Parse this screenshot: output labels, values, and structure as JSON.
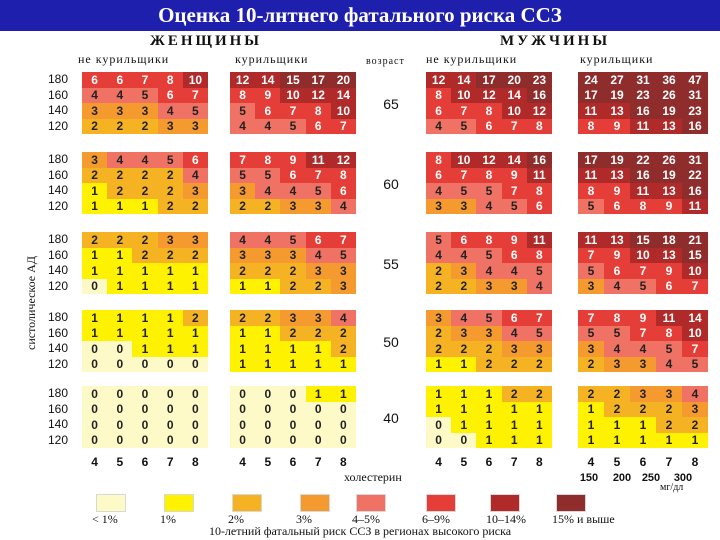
{
  "title": "Оценка 10-лнтнего фатального риска ССЗ",
  "headers": {
    "women": "ЖЕНЩИНЫ",
    "men": "МУЖЧИНЫ",
    "non_smokers": "не курильщики",
    "smokers": "курильщики",
    "age": "возраст"
  },
  "sbp_label": "систолическое АД",
  "sbp_rows": [
    "180",
    "160",
    "140",
    "120"
  ],
  "ages": [
    "65",
    "60",
    "55",
    "50",
    "40"
  ],
  "chol_ticks": [
    "4",
    "5",
    "6",
    "7",
    "8"
  ],
  "chol_label": "холестерин",
  "mmol_ticks": [
    "150",
    "200",
    "250",
    "300"
  ],
  "mmol_unit": "мг/дл",
  "legend": {
    "items": [
      {
        "label": "< 1%",
        "color": "#fefac8"
      },
      {
        "label": "1%",
        "color": "#fef200"
      },
      {
        "label": "2%",
        "color": "#f5b324"
      },
      {
        "label": "3%",
        "color": "#f49a2e"
      },
      {
        "label": "4–5%",
        "color": "#ef7265"
      },
      {
        "label": "6–9%",
        "color": "#e53d37"
      },
      {
        "label": "10–14%",
        "color": "#b02a2a"
      },
      {
        "label": "15% и выше",
        "color": "#8f2d2d"
      }
    ]
  },
  "footer": "10-летний фатальный риск ССЗ в регионах высокого риска",
  "palette": {
    "lt1": "#fefac8",
    "p1": "#fef200",
    "p2": "#f5b324",
    "p3": "#f49a2e",
    "p45": "#ef7265",
    "p69": "#e53d37",
    "p1014": "#b02a2a",
    "p15": "#8f2d2d",
    "title_bg": "#1f1fae"
  },
  "tables": [
    {
      "age": "65",
      "panels": [
        {
          "sex": "women",
          "smoking": "non-smoker",
          "rows": [
            [
              6,
              6,
              7,
              8,
              10
            ],
            [
              4,
              4,
              5,
              6,
              7
            ],
            [
              3,
              3,
              3,
              4,
              5
            ],
            [
              2,
              2,
              2,
              3,
              3
            ]
          ]
        },
        {
          "sex": "women",
          "smoking": "smoker",
          "rows": [
            [
              12,
              14,
              15,
              17,
              20
            ],
            [
              8,
              9,
              10,
              12,
              14
            ],
            [
              5,
              6,
              7,
              8,
              10
            ],
            [
              4,
              4,
              5,
              6,
              7
            ]
          ]
        },
        {
          "sex": "men",
          "smoking": "non-smoker",
          "rows": [
            [
              12,
              14,
              17,
              20,
              23
            ],
            [
              8,
              10,
              12,
              14,
              16
            ],
            [
              6,
              7,
              8,
              10,
              12
            ],
            [
              4,
              5,
              6,
              7,
              8
            ]
          ]
        },
        {
          "sex": "men",
          "smoking": "smoker",
          "rows": [
            [
              24,
              27,
              31,
              36,
              47
            ],
            [
              17,
              19,
              23,
              26,
              31
            ],
            [
              11,
              13,
              16,
              19,
              23
            ],
            [
              8,
              9,
              11,
              13,
              16
            ]
          ]
        }
      ]
    },
    {
      "age": "60",
      "panels": [
        {
          "sex": "women",
          "smoking": "non-smoker",
          "rows": [
            [
              3,
              4,
              4,
              5,
              6
            ],
            [
              2,
              2,
              2,
              2,
              4
            ],
            [
              1,
              2,
              2,
              2,
              3
            ],
            [
              1,
              1,
              1,
              2,
              2
            ]
          ]
        },
        {
          "sex": "women",
          "smoking": "smoker",
          "rows": [
            [
              7,
              8,
              9,
              11,
              12
            ],
            [
              5,
              5,
              6,
              7,
              8
            ],
            [
              3,
              4,
              4,
              5,
              6
            ],
            [
              2,
              2,
              3,
              3,
              4
            ]
          ]
        },
        {
          "sex": "men",
          "smoking": "non-smoker",
          "rows": [
            [
              8,
              10,
              12,
              14,
              16
            ],
            [
              6,
              7,
              8,
              9,
              11
            ],
            [
              4,
              5,
              5,
              7,
              8
            ],
            [
              3,
              3,
              4,
              5,
              6
            ]
          ]
        },
        {
          "sex": "men",
          "smoking": "smoker",
          "rows": [
            [
              17,
              19,
              22,
              26,
              31
            ],
            [
              11,
              13,
              16,
              19,
              22
            ],
            [
              8,
              9,
              11,
              13,
              16
            ],
            [
              5,
              6,
              8,
              9,
              11
            ]
          ]
        }
      ]
    },
    {
      "age": "55",
      "panels": [
        {
          "sex": "women",
          "smoking": "non-smoker",
          "rows": [
            [
              2,
              2,
              2,
              3,
              3
            ],
            [
              1,
              1,
              2,
              2,
              2
            ],
            [
              1,
              1,
              1,
              1,
              1
            ],
            [
              0,
              1,
              1,
              1,
              1
            ]
          ]
        },
        {
          "sex": "women",
          "smoking": "smoker",
          "rows": [
            [
              4,
              4,
              5,
              6,
              7
            ],
            [
              3,
              3,
              3,
              4,
              5
            ],
            [
              2,
              2,
              2,
              3,
              3
            ],
            [
              1,
              1,
              2,
              2,
              3
            ]
          ]
        },
        {
          "sex": "men",
          "smoking": "non-smoker",
          "rows": [
            [
              5,
              6,
              8,
              9,
              11
            ],
            [
              4,
              4,
              5,
              6,
              8
            ],
            [
              2,
              3,
              4,
              4,
              5
            ],
            [
              2,
              2,
              3,
              3,
              4
            ]
          ]
        },
        {
          "sex": "men",
          "smoking": "smoker",
          "rows": [
            [
              11,
              13,
              15,
              18,
              21
            ],
            [
              7,
              9,
              10,
              13,
              15
            ],
            [
              5,
              6,
              7,
              9,
              10
            ],
            [
              3,
              4,
              5,
              6,
              7
            ]
          ]
        }
      ]
    },
    {
      "age": "50",
      "panels": [
        {
          "sex": "women",
          "smoking": "non-smoker",
          "rows": [
            [
              1,
              1,
              1,
              1,
              2
            ],
            [
              1,
              1,
              1,
              1,
              1
            ],
            [
              0,
              0,
              1,
              1,
              1
            ],
            [
              0,
              0,
              0,
              0,
              0
            ]
          ]
        },
        {
          "sex": "women",
          "smoking": "smoker",
          "rows": [
            [
              2,
              2,
              3,
              3,
              4
            ],
            [
              1,
              1,
              2,
              2,
              2
            ],
            [
              1,
              1,
              1,
              1,
              2
            ],
            [
              1,
              1,
              1,
              1,
              1
            ]
          ]
        },
        {
          "sex": "men",
          "smoking": "non-smoker",
          "rows": [
            [
              3,
              4,
              5,
              6,
              7
            ],
            [
              2,
              3,
              3,
              4,
              5
            ],
            [
              2,
              2,
              2,
              3,
              3
            ],
            [
              1,
              1,
              2,
              2,
              2
            ]
          ]
        },
        {
          "sex": "men",
          "smoking": "smoker",
          "rows": [
            [
              7,
              8,
              9,
              11,
              14
            ],
            [
              5,
              5,
              7,
              8,
              10
            ],
            [
              3,
              4,
              4,
              5,
              7
            ],
            [
              2,
              3,
              3,
              4,
              5
            ]
          ]
        }
      ]
    },
    {
      "age": "40",
      "panels": [
        {
          "sex": "women",
          "smoking": "non-smoker",
          "rows": [
            [
              0,
              0,
              0,
              0,
              0
            ],
            [
              0,
              0,
              0,
              0,
              0
            ],
            [
              0,
              0,
              0,
              0,
              0
            ],
            [
              0,
              0,
              0,
              0,
              0
            ]
          ]
        },
        {
          "sex": "women",
          "smoking": "smoker",
          "rows": [
            [
              0,
              0,
              0,
              1,
              1
            ],
            [
              0,
              0,
              0,
              0,
              0
            ],
            [
              0,
              0,
              0,
              0,
              0
            ],
            [
              0,
              0,
              0,
              0,
              0
            ]
          ]
        },
        {
          "sex": "men",
          "smoking": "non-smoker",
          "rows": [
            [
              1,
              1,
              1,
              2,
              2
            ],
            [
              1,
              1,
              1,
              1,
              1
            ],
            [
              0,
              1,
              1,
              1,
              1
            ],
            [
              0,
              0,
              1,
              1,
              1
            ]
          ]
        },
        {
          "sex": "men",
          "smoking": "smoker",
          "rows": [
            [
              2,
              2,
              3,
              3,
              4
            ],
            [
              1,
              2,
              2,
              2,
              3
            ],
            [
              1,
              1,
              1,
              2,
              2
            ],
            [
              1,
              1,
              1,
              1,
              1
            ]
          ]
        }
      ]
    }
  ]
}
